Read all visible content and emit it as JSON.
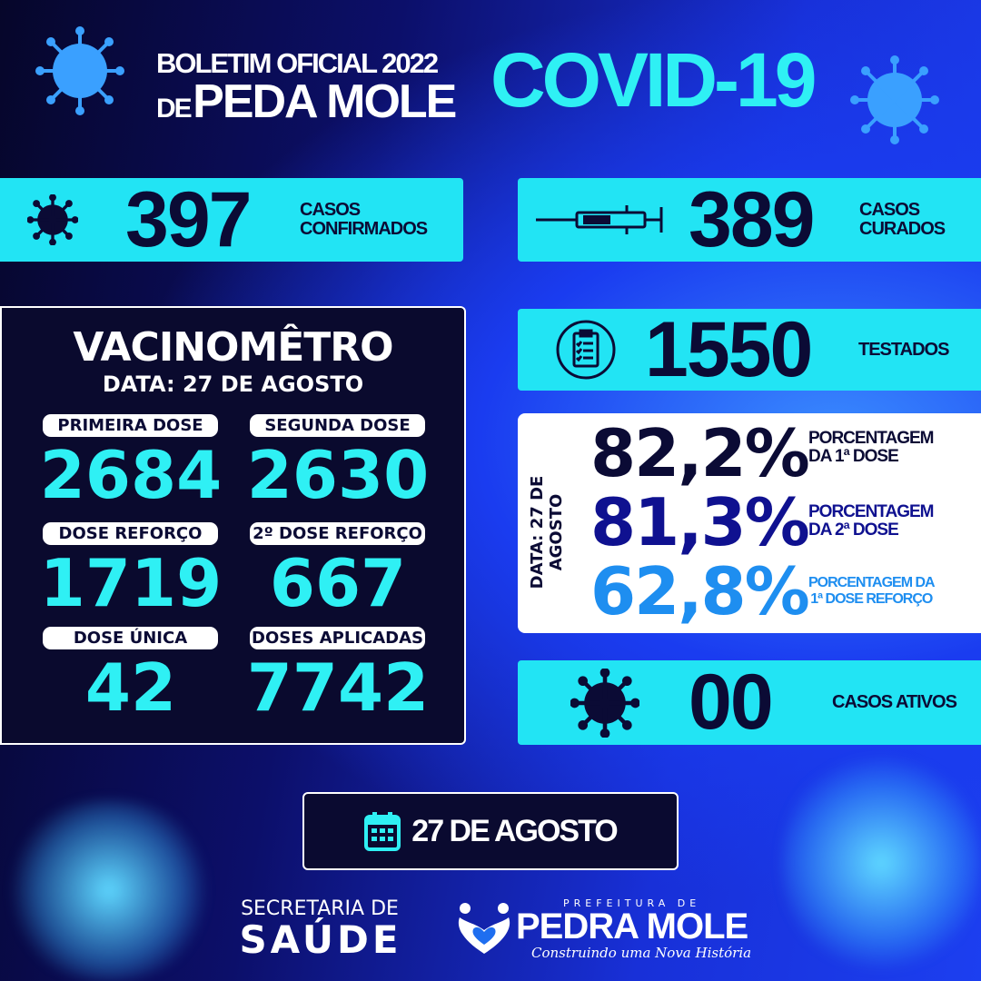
{
  "header": {
    "line1": "BOLETIM OFICIAL 2022",
    "de": "DE",
    "city": "PEDA MOLE",
    "covid": "COVID-19"
  },
  "colors": {
    "cyan": "#22e4f4",
    "navy": "#0b0b35",
    "dark_blue": "#0f1190",
    "light_blue": "#1e8ef0"
  },
  "confirmed": {
    "value": "397",
    "label1": "CASOS",
    "label2": "CONFIRMADOS",
    "icon": "virus-icon"
  },
  "cured": {
    "value": "389",
    "label1": "CASOS",
    "label2": "CURADOS",
    "icon": "syringe-icon"
  },
  "tested": {
    "value": "1550",
    "label": "TESTADOS",
    "icon": "clipboard-icon"
  },
  "active": {
    "value": "00",
    "label": "CASOS ATIVOS",
    "icon": "virus-icon"
  },
  "vacinometro": {
    "title": "VACINOMÊTRO",
    "date": "DATA: 27 DE AGOSTO",
    "items": [
      {
        "label": "PRIMEIRA DOSE",
        "value": "2684"
      },
      {
        "label": "SEGUNDA DOSE",
        "value": "2630"
      },
      {
        "label": "DOSE REFORÇO",
        "value": "1719"
      },
      {
        "label": "2º DOSE REFORÇO",
        "value": "667"
      },
      {
        "label": "DOSE ÚNICA",
        "value": "42"
      },
      {
        "label": "DOSES APLICADAS",
        "value": "7742"
      }
    ]
  },
  "percentages": {
    "date": "DATA: 27 DE AGOSTO",
    "items": [
      {
        "value": "82,2%",
        "l1": "PORCENTAGEM",
        "l2": "DA 1ª DOSE"
      },
      {
        "value": "81,3%",
        "l1": "PORCENTAGEM",
        "l2": "DA 2ª DOSE"
      },
      {
        "value": "62,8%",
        "l1": "PORCENTAGEM DA",
        "l2": "1ª DOSE REFORÇO"
      }
    ]
  },
  "date_badge": {
    "text": "27 DE AGOSTO",
    "icon": "calendar-icon"
  },
  "footer": {
    "sec1": "SECRETARIA DE",
    "sec2": "SAÚDE",
    "pref": "PREFEITURA DE",
    "city": "PEDRA MOLE",
    "slogan": "Construindo uma Nova História"
  }
}
